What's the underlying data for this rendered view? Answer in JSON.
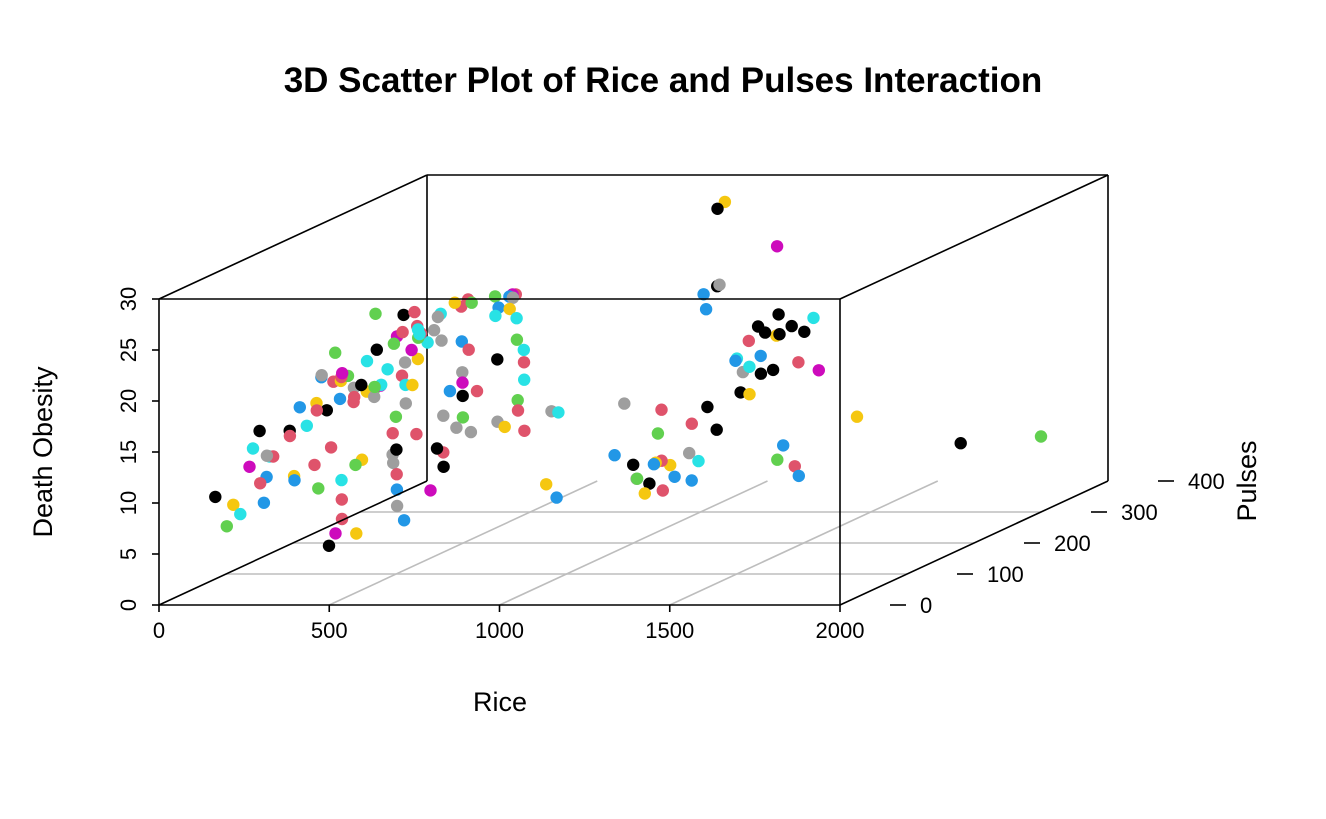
{
  "chart_data": {
    "type": "scatter",
    "subtype": "scatter3d",
    "title": "3D Scatter Plot of Rice and Pulses Interaction",
    "xlabel": "Rice",
    "ylabel": "Pulses",
    "zlabel": "Death Obesity",
    "xlim": [
      0,
      2000
    ],
    "ylim": [
      0,
      400
    ],
    "zlim": [
      0,
      30
    ],
    "x_ticks": [
      "0",
      "500",
      "1000",
      "1500",
      "2000"
    ],
    "y_ticks": [
      "0",
      "100",
      "200",
      "300",
      "400"
    ],
    "z_ticks": [
      "0",
      "5",
      "10",
      "15",
      "20",
      "25",
      "30"
    ],
    "grid": "floor",
    "box": true,
    "palette": [
      "#000000",
      "#DF536B",
      "#61D04F",
      "#2297E6",
      "#28E2E5",
      "#CD0BBC",
      "#F5C710",
      "#9E9E9E"
    ],
    "points": [
      [
        1052,
        310,
        30.1,
        "#F5C710"
      ],
      [
        1042,
        304,
        29.6,
        "#000000"
      ],
      [
        1280,
        272,
        26.9,
        "#CD0BBC"
      ],
      [
        1160,
        247,
        23.9,
        "#9E9E9E"
      ],
      [
        1129,
        239,
        23.2,
        "#2297E6"
      ],
      [
        1160,
        227,
        22.1,
        "#2297E6"
      ],
      [
        1118,
        265,
        23.2,
        "#000000"
      ],
      [
        1192,
        319,
        18.8,
        "#000000"
      ],
      [
        1195,
        273,
        17.6,
        "#DF536B"
      ],
      [
        1112,
        329,
        17.3,
        "#000000"
      ],
      [
        1113,
        339,
        16.4,
        "#000000"
      ],
      [
        1130,
        370,
        16.1,
        "#000000"
      ],
      [
        1106,
        401,
        14.6,
        "#000000"
      ],
      [
        1265,
        334,
        18.0,
        "#28E2E5"
      ],
      [
        1230,
        301,
        17.4,
        "#000000"
      ],
      [
        1222,
        277,
        16.0,
        "#2297E6"
      ],
      [
        1042,
        392,
        14.5,
        "#F5C710"
      ],
      [
        1186,
        382,
        11.4,
        "#CD0BBC"
      ],
      [
        1140,
        375,
        12.4,
        "#DF536B"
      ],
      [
        910,
        400,
        12.0,
        "#28E2E5"
      ],
      [
        965,
        370,
        12.7,
        "#2297E6"
      ],
      [
        1101,
        357,
        12.2,
        "#000000"
      ],
      [
        1057,
        344,
        12.9,
        "#28E2E5"
      ],
      [
        1018,
        381,
        11.1,
        "#000000"
      ],
      [
        1026,
        350,
        12.2,
        "#9E9E9E"
      ],
      [
        980,
        370,
        9.6,
        "#000000"
      ],
      [
        1040,
        290,
        10.6,
        "#000000"
      ],
      [
        1055,
        259,
        9.9,
        "#DF536B"
      ],
      [
        1140,
        253,
        9.5,
        "#000000"
      ],
      [
        1085,
        240,
        7.6,
        "#9E9E9E"
      ],
      [
        1086,
        211,
        7.3,
        "#F5C710"
      ],
      [
        1160,
        180,
        7.1,
        "#2297E6"
      ],
      [
        1189,
        201,
        8.0,
        "#28E2E5"
      ],
      [
        1240,
        120,
        10.5,
        "#DF536B"
      ],
      [
        1268,
        97,
        11.0,
        "#F5C710"
      ],
      [
        1247,
        74,
        11.5,
        "#000000"
      ],
      [
        1298,
        79,
        11.4,
        "#2297E6"
      ],
      [
        1320,
        42,
        11.1,
        "#9E9E9E"
      ],
      [
        1347,
        29,
        11.5,
        "#61D04F"
      ],
      [
        1405,
        11,
        10.6,
        "#F5C710"
      ],
      [
        1395,
        23,
        11.2,
        "#000000"
      ],
      [
        1452,
        14,
        10.8,
        "#DF536B"
      ],
      [
        1525,
        20,
        11.6,
        "#2297E6"
      ],
      [
        1662,
        87,
        13.0,
        "#2297E6"
      ],
      [
        1690,
        64,
        12.3,
        "#61D04F"
      ],
      [
        1822,
        23,
        12.9,
        "#DF536B"
      ],
      [
        1735,
        160,
        13.6,
        "#F5C710"
      ],
      [
        1875,
        2,
        12.6,
        "#2297E6"
      ],
      [
        2020,
        170,
        10.7,
        "#000000"
      ],
      [
        2000,
        300,
        7.4,
        "#61D04F"
      ],
      [
        1150,
        110,
        16.4,
        "#9E9E9E"
      ],
      [
        1220,
        130,
        15.2,
        "#DF536B"
      ],
      [
        1030,
        70,
        8.4,
        "#2297E6"
      ],
      [
        960,
        90,
        9.1,
        "#F5C710"
      ],
      [
        905,
        220,
        8.0,
        "#2297E6"
      ],
      [
        875,
        300,
        7.7,
        "#61D04F"
      ],
      [
        1380,
        180,
        15.2,
        "#F5C710"
      ],
      [
        120,
        23,
        9.9,
        "#000000"
      ],
      [
        120,
        100,
        11.6,
        "#9E9E9E"
      ],
      [
        80,
        180,
        12.1,
        "#28E2E5"
      ],
      [
        60,
        220,
        12.4,
        "#000000"
      ],
      [
        60,
        260,
        12.0,
        "#DF536B"
      ],
      [
        40,
        300,
        11.9,
        "#61D04F"
      ],
      [
        20,
        260,
        12.3,
        "#2297E6"
      ],
      [
        20,
        300,
        11.8,
        "#F5C710"
      ],
      [
        100,
        280,
        13.0,
        "#CD0BBC"
      ],
      [
        140,
        250,
        12.8,
        "#9E9E9E"
      ],
      [
        160,
        210,
        14.0,
        "#DF536B"
      ],
      [
        200,
        230,
        14.6,
        "#28E2E5"
      ],
      [
        220,
        210,
        15.0,
        "#61D04F"
      ],
      [
        240,
        180,
        16.1,
        "#000000"
      ],
      [
        180,
        180,
        16.5,
        "#F5C710"
      ],
      [
        260,
        150,
        17.9,
        "#61D04F"
      ],
      [
        280,
        130,
        18.4,
        "#DF536B"
      ],
      [
        300,
        90,
        19.6,
        "#2297E6"
      ],
      [
        340,
        70,
        20.4,
        "#9E9E9E"
      ],
      [
        380,
        130,
        24.6,
        "#61D04F"
      ],
      [
        360,
        80,
        22.3,
        "#61D04F"
      ],
      [
        420,
        60,
        20.9,
        "#CD0BBC"
      ],
      [
        440,
        140,
        22.5,
        "#DF536B"
      ],
      [
        470,
        150,
        22.0,
        "#28E2E5"
      ],
      [
        500,
        180,
        15.5,
        "#2297E6"
      ],
      [
        520,
        160,
        13.7,
        "#9E9E9E"
      ],
      [
        560,
        190,
        15.2,
        "#DF536B"
      ],
      [
        600,
        200,
        18.0,
        "#000000"
      ],
      [
        640,
        180,
        12.5,
        "#9E9E9E"
      ],
      [
        660,
        210,
        10.7,
        "#DF536B"
      ],
      [
        700,
        230,
        12.0,
        "#9E9E9E"
      ],
      [
        740,
        220,
        12.2,
        "#28E2E5"
      ],
      [
        720,
        150,
        12.9,
        "#F5C710"
      ],
      [
        680,
        120,
        13.3,
        "#9E9E9E"
      ],
      [
        600,
        110,
        12.0,
        "#000000"
      ],
      [
        500,
        130,
        12.8,
        "#DF536B"
      ],
      [
        450,
        120,
        11.1,
        "#9E9E9E"
      ],
      [
        400,
        90,
        11.0,
        "#61D04F"
      ],
      [
        360,
        120,
        10.6,
        "#F5C710"
      ],
      [
        330,
        70,
        9.3,
        "#61D04F"
      ],
      [
        280,
        60,
        10.4,
        "#2297E6"
      ],
      [
        260,
        100,
        10.7,
        "#DF536B"
      ],
      [
        230,
        140,
        11.2,
        "#DF536B"
      ],
      [
        200,
        100,
        9.6,
        "#F5C710"
      ],
      [
        190,
        60,
        8.2,
        "#2297E6"
      ],
      [
        160,
        40,
        7.7,
        "#28E2E5"
      ],
      [
        140,
        30,
        6.8,
        "#61D04F"
      ],
      [
        120,
        90,
        9.2,
        "#DF536B"
      ],
      [
        100,
        60,
        8.0,
        "#F5C710"
      ],
      [
        80,
        120,
        8.9,
        "#2297E6"
      ],
      [
        60,
        140,
        10.3,
        "#DF536B"
      ],
      [
        40,
        120,
        11.7,
        "#28E2E5"
      ],
      [
        20,
        140,
        12.8,
        "#000000"
      ],
      [
        20,
        200,
        13.3,
        "#2297E6"
      ],
      [
        40,
        240,
        14.6,
        "#DF536B"
      ],
      [
        60,
        280,
        15.4,
        "#28E2E5"
      ],
      [
        80,
        310,
        16.2,
        "#61D04F"
      ],
      [
        120,
        330,
        16.6,
        "#DF536B"
      ],
      [
        150,
        340,
        17.9,
        "#9E9E9E"
      ],
      [
        180,
        350,
        19.0,
        "#F5C710"
      ],
      [
        210,
        360,
        18.7,
        "#61D04F"
      ],
      [
        160,
        300,
        19.6,
        "#DF536B"
      ],
      [
        190,
        290,
        18.2,
        "#28E2E5"
      ],
      [
        230,
        270,
        18.0,
        "#61D04F"
      ],
      [
        250,
        250,
        17.4,
        "#CD0BBC"
      ],
      [
        290,
        220,
        17.1,
        "#9E9E9E"
      ],
      [
        320,
        200,
        16.4,
        "#DF536B"
      ],
      [
        350,
        190,
        15.8,
        "#28E2E5"
      ],
      [
        390,
        180,
        16.1,
        "#F5C710"
      ],
      [
        410,
        160,
        14.9,
        "#9E9E9E"
      ],
      [
        440,
        130,
        14.5,
        "#61D04F"
      ],
      [
        470,
        110,
        13.5,
        "#DF536B"
      ],
      [
        520,
        90,
        12.5,
        "#000000"
      ],
      [
        550,
        70,
        11.8,
        "#9E9E9E"
      ],
      [
        580,
        60,
        11.0,
        "#DF536B"
      ],
      [
        620,
        40,
        10.1,
        "#2297E6"
      ],
      [
        660,
        20,
        9.1,
        "#9E9E9E"
      ],
      [
        700,
        10,
        8.0,
        "#2297E6"
      ],
      [
        640,
        80,
        8.8,
        "#CD0BBC"
      ],
      [
        580,
        130,
        9.6,
        "#000000"
      ],
      [
        520,
        160,
        10.1,
        "#DF536B"
      ],
      [
        480,
        200,
        11.3,
        "#9E9E9E"
      ],
      [
        440,
        230,
        11.4,
        "#61D04F"
      ],
      [
        400,
        250,
        12.9,
        "#000000"
      ],
      [
        360,
        270,
        13.6,
        "#CD0BBC"
      ],
      [
        320,
        290,
        14.0,
        "#9E9E9E"
      ],
      [
        280,
        320,
        15.3,
        "#DF536B"
      ],
      [
        240,
        330,
        15.8,
        "#2297E6"
      ],
      [
        200,
        320,
        16.2,
        "#9E9E9E"
      ],
      [
        170,
        300,
        15.0,
        "#F5C710"
      ],
      [
        140,
        270,
        14.9,
        "#28E2E5"
      ],
      [
        100,
        240,
        14.0,
        "#9E9E9E"
      ],
      [
        70,
        200,
        13.0,
        "#DF536B"
      ],
      [
        50,
        170,
        11.4,
        "#DF536B"
      ],
      [
        30,
        150,
        10.0,
        "#28E2E5"
      ],
      [
        10,
        130,
        9.6,
        "#CD0BBC"
      ],
      [
        10,
        190,
        11.3,
        "#000000"
      ],
      [
        10,
        230,
        12.8,
        "#F5C710"
      ],
      [
        10,
        270,
        14.3,
        "#28E2E5"
      ],
      [
        10,
        320,
        15.3,
        "#000000"
      ],
      [
        10,
        360,
        17.5,
        "#000000"
      ],
      [
        30,
        340,
        16.0,
        "#CD0BBC"
      ],
      [
        50,
        360,
        16.4,
        "#DF536B"
      ],
      [
        60,
        390,
        16.7,
        "#28E2E5"
      ],
      [
        80,
        370,
        15.7,
        "#9E9E9E"
      ],
      [
        100,
        350,
        15.1,
        "#28E2E5"
      ],
      [
        120,
        390,
        17.4,
        "#DF536B"
      ],
      [
        160,
        380,
        18.4,
        "#DF536B"
      ],
      [
        200,
        400,
        18.1,
        "#61D04F"
      ],
      [
        230,
        390,
        17.3,
        "#2297E6"
      ],
      [
        260,
        370,
        17.1,
        "#28E2E5"
      ],
      [
        300,
        380,
        18.9,
        "#DF536B"
      ],
      [
        330,
        360,
        19.5,
        "#CD0BBC"
      ],
      [
        360,
        340,
        19.9,
        "#2297E6"
      ],
      [
        390,
        330,
        20.1,
        "#9E9E9E"
      ],
      [
        420,
        310,
        19.6,
        "#F5C710"
      ],
      [
        460,
        300,
        19.0,
        "#28E2E5"
      ],
      [
        500,
        280,
        17.5,
        "#61D04F"
      ],
      [
        540,
        270,
        16.8,
        "#28E2E5"
      ],
      [
        580,
        250,
        16.2,
        "#DF536B"
      ],
      [
        620,
        230,
        15.1,
        "#28E2E5"
      ],
      [
        660,
        200,
        14.0,
        "#61D04F"
      ],
      [
        700,
        180,
        13.6,
        "#DF536B"
      ],
      [
        300,
        120,
        8.6,
        "#28E2E5"
      ],
      [
        340,
        100,
        7.3,
        "#DF536B"
      ],
      [
        380,
        80,
        6.0,
        "#DF536B"
      ],
      [
        420,
        50,
        5.5,
        "#CD0BBC"
      ],
      [
        460,
        20,
        5.2,
        "#000000"
      ],
      [
        540,
        20,
        6.4,
        "#F5C710"
      ]
    ]
  }
}
